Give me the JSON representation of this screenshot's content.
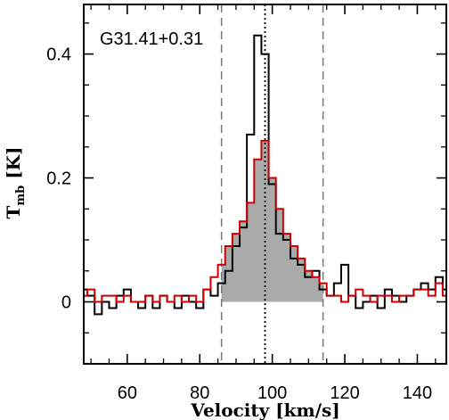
{
  "chart_data": {
    "type": "line",
    "title": "G31.41+0.31",
    "xlabel": "Velocity [km/s]",
    "ylabel_main": "T",
    "ylabel_sub": "mb",
    "ylabel_unit": " [K]",
    "xlim": [
      48,
      148
    ],
    "ylim": [
      -0.1,
      0.48
    ],
    "xticks": [
      60,
      80,
      100,
      120,
      140
    ],
    "yticks": [
      0,
      0.2,
      0.4
    ],
    "ytick_labels": [
      "0",
      "0.2",
      "0.4"
    ],
    "x": [
      48,
      50,
      52,
      54,
      56,
      58,
      60,
      62,
      64,
      66,
      68,
      70,
      72,
      74,
      76,
      78,
      80,
      82,
      84,
      86,
      88,
      90,
      92,
      94,
      96,
      98,
      100,
      102,
      104,
      106,
      108,
      110,
      112,
      114,
      116,
      118,
      120,
      122,
      124,
      126,
      128,
      130,
      132,
      134,
      136,
      138,
      140,
      142,
      144,
      146,
      148
    ],
    "series": [
      {
        "color": "#000000",
        "values": [
          0.02,
          0.01,
          -0.02,
          0.0,
          -0.01,
          0.01,
          0.02,
          0.0,
          -0.01,
          0.01,
          -0.01,
          0.01,
          0.0,
          -0.01,
          0.01,
          0.0,
          -0.01,
          0.02,
          0.01,
          0.03,
          0.05,
          0.09,
          0.12,
          0.27,
          0.43,
          0.4,
          0.19,
          0.11,
          0.1,
          0.07,
          0.06,
          0.04,
          0.05,
          0.02,
          0.01,
          0.03,
          0.06,
          0.01,
          -0.01,
          0.0,
          0.01,
          -0.01,
          0.02,
          0.01,
          0.0,
          0.01,
          0.02,
          0.03,
          0.02,
          0.04,
          0.02
        ]
      },
      {
        "color": "#cc0000",
        "values": [
          0.01,
          0.02,
          0.0,
          0.01,
          0.01,
          0.0,
          0.01,
          0.0,
          0.0,
          0.01,
          0.0,
          0.01,
          0.0,
          0.01,
          0.0,
          0.01,
          0.0,
          0.02,
          0.04,
          0.06,
          0.09,
          0.11,
          0.13,
          0.16,
          0.23,
          0.26,
          0.2,
          0.15,
          0.11,
          0.09,
          0.07,
          0.05,
          0.04,
          0.03,
          0.01,
          0.01,
          0.0,
          0.01,
          0.02,
          0.01,
          0.0,
          0.01,
          0.01,
          0.0,
          0.01,
          0.01,
          0.02,
          0.02,
          0.01,
          0.03,
          0.01
        ],
        "filled": true,
        "fill_color": "#aaaaaa",
        "fill_range": [
          86,
          114
        ]
      }
    ],
    "dashed_vlines": [
      86,
      114
    ],
    "dotted_vlines": [
      98
    ],
    "grid": false,
    "legend": "none"
  }
}
